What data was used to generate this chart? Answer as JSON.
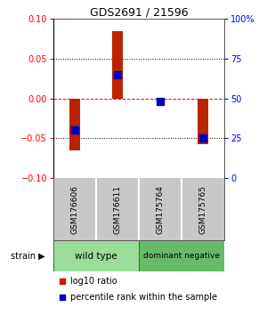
{
  "title": "GDS2691 / 21596",
  "samples": [
    "GSM176606",
    "GSM176611",
    "GSM175764",
    "GSM175765"
  ],
  "log10_ratio": [
    -0.065,
    0.085,
    -0.002,
    -0.057
  ],
  "percentile_rank": [
    30,
    65,
    48,
    25
  ],
  "ylim_left": [
    -0.1,
    0.1
  ],
  "ylim_right": [
    0,
    100
  ],
  "yticks_left": [
    -0.1,
    -0.05,
    0,
    0.05,
    0.1
  ],
  "yticks_right": [
    0,
    25,
    50,
    75,
    100
  ],
  "ytick_labels_right": [
    "0",
    "25",
    "50",
    "75",
    "100%"
  ],
  "bar_color": "#BB2200",
  "dot_color": "#0000BB",
  "bar_width": 0.25,
  "dot_size": 30,
  "legend_items": [
    {
      "color": "#BB2200",
      "label": "log10 ratio"
    },
    {
      "color": "#0000BB",
      "label": "percentile rank within the sample"
    }
  ],
  "background_color": "#ffffff",
  "plot_bg_color": "#ffffff",
  "label_area_color": "#c8c8c8",
  "wild_type_color": "#99dd99",
  "dominant_negative_color": "#66bb66",
  "group_label": "strain",
  "wild_type_label": "wild type",
  "dominant_negative_label": "dominant negative"
}
